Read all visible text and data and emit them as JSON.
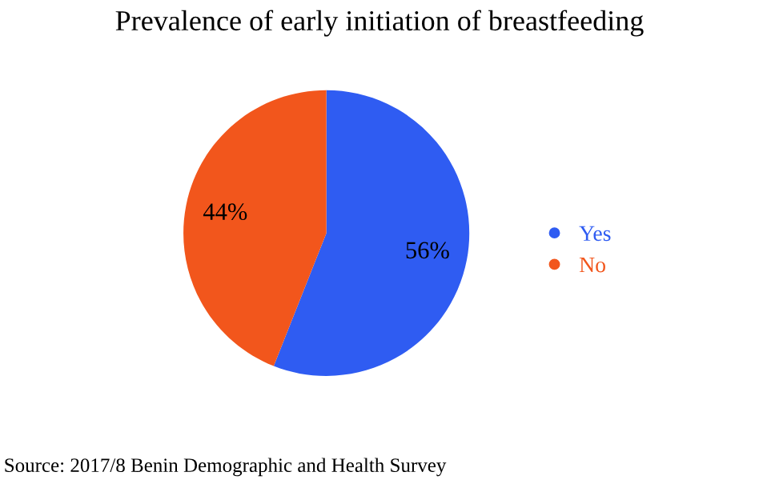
{
  "chart_data": {
    "type": "pie",
    "title": "Prevalence of early initiation of breastfeeding",
    "categories": [
      "Yes",
      "No"
    ],
    "values": [
      56,
      44
    ],
    "colors": [
      "#2f5cf2",
      "#f2561c"
    ],
    "value_labels": [
      "56%",
      "44%"
    ],
    "legend": "right",
    "annotations": [
      "Source: 2017/8 Benin Demographic and Health Survey"
    ]
  }
}
